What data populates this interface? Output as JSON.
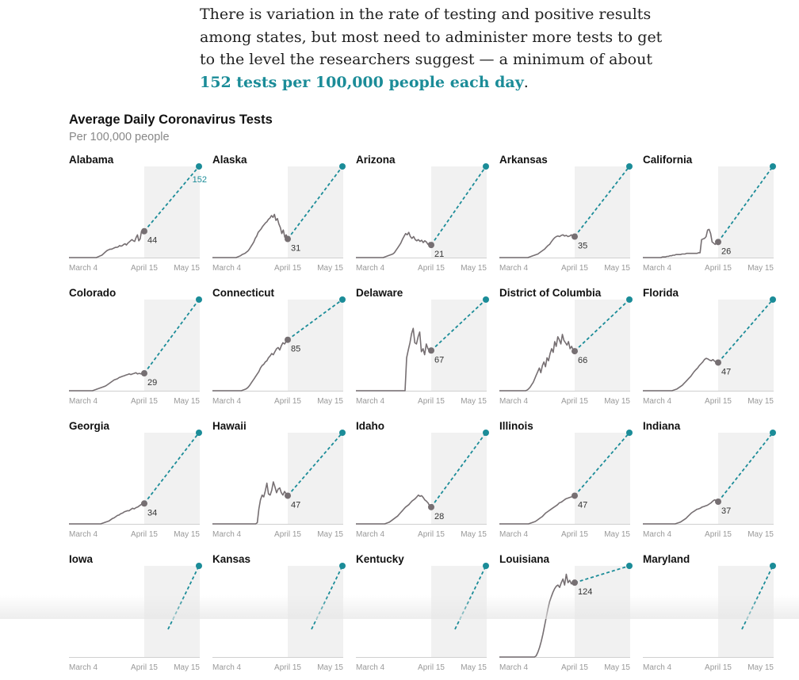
{
  "article": {
    "intro_pre": "There is variation in the rate of testing and positive results among states, but most need to administer more tests to get to the level the researchers suggest — a minimum of about ",
    "intro_link": "152 tests per 100,000 people each day",
    "intro_post": "."
  },
  "chart_data": {
    "type": "line",
    "title": "Average Daily Coronavirus Tests",
    "subtitle": "Per 100,000 people",
    "x_ticks": [
      "March 4",
      "April 15",
      "May 15"
    ],
    "target": 152,
    "target_label": "152",
    "ylim": [
      0,
      152
    ],
    "colors": {
      "actual": "#766f72",
      "target": "#1b8c98",
      "shade": "#f1f1f1"
    },
    "series": [
      {
        "name": "Alabama",
        "current": 44,
        "show_target_label": true,
        "values": [
          0,
          0,
          0,
          0,
          0,
          0,
          0,
          0,
          0,
          0,
          0,
          0,
          0,
          0,
          0,
          0,
          0,
          0,
          0,
          0,
          0,
          1,
          2,
          3,
          4,
          6,
          8,
          10,
          12,
          13,
          14,
          14,
          15,
          16,
          17,
          17,
          18,
          20,
          19,
          20,
          22,
          23,
          21,
          24,
          26,
          28,
          30,
          28,
          27,
          33,
          38,
          28,
          31,
          44,
          40,
          44
        ]
      },
      {
        "name": "Alaska",
        "current": 31,
        "values": [
          0,
          0,
          0,
          0,
          0,
          0,
          0,
          0,
          0,
          0,
          0,
          0,
          0,
          0,
          0,
          0,
          0,
          1,
          2,
          3,
          5,
          6,
          7,
          9,
          11,
          14,
          18,
          22,
          26,
          32,
          36,
          42,
          45,
          48,
          52,
          55,
          58,
          60,
          64,
          66,
          70,
          67,
          72,
          62,
          65,
          56,
          50,
          40,
          46,
          34,
          38,
          31
        ]
      },
      {
        "name": "Arizona",
        "current": 21,
        "values": [
          0,
          0,
          0,
          0,
          0,
          0,
          0,
          0,
          0,
          0,
          0,
          0,
          0,
          0,
          0,
          0,
          0,
          0,
          1,
          2,
          3,
          4,
          5,
          6,
          8,
          12,
          16,
          20,
          24,
          30,
          35,
          40,
          38,
          42,
          35,
          32,
          35,
          30,
          28,
          30,
          27,
          29,
          25,
          28,
          26,
          22,
          25,
          21
        ]
      },
      {
        "name": "Arkansas",
        "current": 35,
        "values": [
          0,
          0,
          0,
          0,
          0,
          0,
          0,
          0,
          0,
          0,
          0,
          0,
          0,
          0,
          0,
          0,
          0,
          0,
          1,
          2,
          3,
          4,
          5,
          6,
          8,
          10,
          12,
          14,
          17,
          20,
          22,
          26,
          30,
          33,
          35,
          36,
          35,
          37,
          38,
          36,
          37,
          35,
          36,
          38,
          36,
          35
        ]
      },
      {
        "name": "California",
        "current": 26,
        "values": [
          0,
          0,
          0,
          0,
          0,
          0,
          0,
          0,
          0,
          0,
          0,
          0,
          0,
          1,
          1,
          1,
          2,
          2,
          3,
          3,
          4,
          4,
          5,
          5,
          5,
          5,
          6,
          6,
          6,
          7,
          7,
          7,
          7,
          7,
          7,
          7,
          7,
          8,
          8,
          30,
          31,
          32,
          35,
          46,
          47,
          40,
          26,
          24,
          22,
          25,
          26
        ]
      },
      {
        "name": "Colorado",
        "current": 29,
        "values": [
          0,
          0,
          0,
          0,
          0,
          0,
          0,
          0,
          0,
          0,
          0,
          0,
          0,
          0,
          0,
          1,
          2,
          3,
          4,
          5,
          6,
          7,
          8,
          10,
          12,
          14,
          16,
          18,
          19,
          20,
          22,
          23,
          24,
          25,
          26,
          27,
          28,
          27,
          28,
          29,
          30,
          28,
          29,
          28,
          30,
          29
        ]
      },
      {
        "name": "Connecticut",
        "current": 85,
        "values": [
          0,
          0,
          0,
          0,
          0,
          0,
          0,
          0,
          0,
          0,
          0,
          0,
          0,
          0,
          0,
          0,
          0,
          0,
          0,
          1,
          2,
          3,
          5,
          8,
          12,
          16,
          20,
          24,
          28,
          32,
          38,
          42,
          44,
          48,
          50,
          55,
          58,
          62,
          60,
          65,
          70,
          72,
          68,
          75,
          80,
          78,
          82,
          85
        ]
      },
      {
        "name": "Delaware",
        "current": 67,
        "values": [
          0,
          0,
          0,
          0,
          0,
          0,
          0,
          0,
          0,
          0,
          0,
          0,
          0,
          0,
          0,
          0,
          0,
          0,
          0,
          0,
          0,
          0,
          0,
          0,
          0,
          0,
          0,
          0,
          0,
          0,
          0,
          55,
          68,
          80,
          95,
          104,
          80,
          78,
          90,
          98,
          65,
          70,
          60,
          78,
          70,
          68,
          67
        ]
      },
      {
        "name": "District of Columbia",
        "current": 66,
        "values": [
          0,
          0,
          0,
          0,
          0,
          0,
          0,
          0,
          0,
          0,
          0,
          0,
          0,
          0,
          0,
          0,
          0,
          0,
          1,
          3,
          6,
          10,
          14,
          20,
          26,
          32,
          38,
          30,
          42,
          48,
          40,
          55,
          50,
          62,
          70,
          64,
          82,
          74,
          90,
          85,
          78,
          94,
          84,
          80,
          76,
          82,
          70,
          74,
          68,
          66
        ]
      },
      {
        "name": "Florida",
        "current": 47,
        "values": [
          0,
          0,
          0,
          0,
          0,
          0,
          0,
          0,
          0,
          0,
          0,
          0,
          0,
          0,
          0,
          0,
          0,
          0,
          1,
          2,
          3,
          5,
          7,
          9,
          12,
          15,
          18,
          21,
          24,
          28,
          32,
          35,
          38,
          42,
          45,
          48,
          52,
          54,
          53,
          51,
          50,
          52,
          49,
          48,
          47
        ]
      },
      {
        "name": "Georgia",
        "current": 34,
        "values": [
          0,
          0,
          0,
          0,
          0,
          0,
          0,
          0,
          0,
          0,
          0,
          0,
          0,
          0,
          0,
          0,
          0,
          0,
          0,
          0,
          1,
          2,
          3,
          4,
          5,
          7,
          9,
          10,
          12,
          14,
          15,
          17,
          18,
          20,
          21,
          22,
          22,
          24,
          26,
          25,
          27,
          28,
          30,
          32,
          34,
          34
        ]
      },
      {
        "name": "Hawaii",
        "current": 47,
        "values": [
          0,
          0,
          0,
          0,
          0,
          0,
          0,
          0,
          0,
          0,
          0,
          0,
          0,
          0,
          0,
          0,
          0,
          0,
          0,
          0,
          0,
          0,
          0,
          0,
          0,
          0,
          0,
          0,
          2,
          25,
          40,
          48,
          45,
          55,
          68,
          50,
          48,
          56,
          70,
          62,
          52,
          58,
          60,
          52,
          48,
          54,
          50,
          47
        ]
      },
      {
        "name": "Idaho",
        "current": 28,
        "values": [
          0,
          0,
          0,
          0,
          0,
          0,
          0,
          0,
          0,
          0,
          0,
          0,
          0,
          0,
          0,
          0,
          0,
          0,
          0,
          1,
          2,
          3,
          5,
          7,
          9,
          11,
          13,
          16,
          19,
          22,
          25,
          28,
          30,
          32,
          35,
          38,
          40,
          42,
          45,
          48,
          46,
          47,
          44,
          40,
          38,
          35,
          30,
          28
        ]
      },
      {
        "name": "Illinois",
        "current": 47,
        "values": [
          0,
          0,
          0,
          0,
          0,
          0,
          0,
          0,
          0,
          0,
          0,
          0,
          0,
          0,
          0,
          0,
          0,
          0,
          1,
          2,
          3,
          4,
          6,
          8,
          10,
          12,
          15,
          18,
          20,
          22,
          24,
          26,
          28,
          30,
          32,
          35,
          36,
          38,
          40,
          42,
          43,
          44,
          45,
          46,
          47
        ]
      },
      {
        "name": "Indiana",
        "current": 37,
        "values": [
          0,
          0,
          0,
          0,
          0,
          0,
          0,
          0,
          0,
          0,
          0,
          0,
          0,
          0,
          0,
          0,
          0,
          0,
          0,
          1,
          2,
          3,
          5,
          7,
          9,
          12,
          15,
          18,
          20,
          22,
          24,
          25,
          26,
          28,
          29,
          30,
          31,
          33,
          35,
          38,
          40,
          39,
          37
        ]
      },
      {
        "name": "Iowa",
        "current": null,
        "values": []
      },
      {
        "name": "Kansas",
        "current": null,
        "values": []
      },
      {
        "name": "Kentucky",
        "current": null,
        "values": []
      },
      {
        "name": "Louisiana",
        "current": 124,
        "values": [
          0,
          0,
          0,
          0,
          0,
          0,
          0,
          0,
          0,
          0,
          0,
          0,
          0,
          0,
          0,
          0,
          0,
          0,
          0,
          0,
          0,
          0,
          2,
          8,
          16,
          26,
          38,
          52,
          66,
          80,
          92,
          100,
          108,
          114,
          118,
          120,
          116,
          124,
          130,
          120,
          138,
          124,
          128,
          122,
          126,
          124
        ]
      },
      {
        "name": "Maryland",
        "current": null,
        "values": []
      }
    ]
  }
}
